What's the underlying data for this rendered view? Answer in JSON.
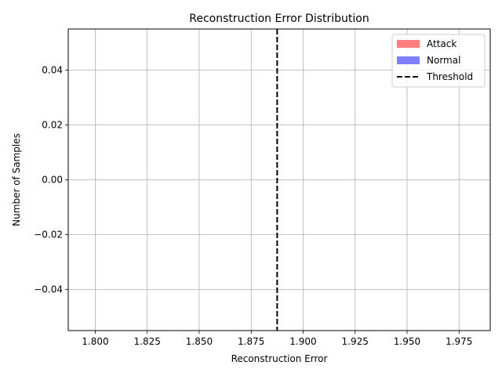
{
  "chart_data": {
    "type": "bar",
    "title": "Reconstruction Error Distribution",
    "xlabel": "Reconstruction Error",
    "ylabel": "Number of Samples",
    "xlim": [
      1.787,
      1.99
    ],
    "ylim": [
      -0.055,
      0.055
    ],
    "x_ticks": [
      1.8,
      1.825,
      1.85,
      1.875,
      1.9,
      1.925,
      1.95,
      1.975
    ],
    "x_tick_labels": [
      "1.800",
      "1.825",
      "1.850",
      "1.875",
      "1.900",
      "1.925",
      "1.950",
      "1.975"
    ],
    "y_ticks": [
      -0.04,
      -0.02,
      0.0,
      0.02,
      0.04
    ],
    "y_tick_labels": [
      "−0.04",
      "−0.02",
      "0.00",
      "0.02",
      "0.04"
    ],
    "grid": true,
    "legend_position": "top-right",
    "series": [
      {
        "name": "Attack",
        "color": "#ff7f7f",
        "values": []
      },
      {
        "name": "Normal",
        "color": "#7f7fff",
        "values": []
      }
    ],
    "threshold": {
      "name": "Threshold",
      "x": 1.8875,
      "color": "#000000",
      "style": "dashed"
    }
  }
}
